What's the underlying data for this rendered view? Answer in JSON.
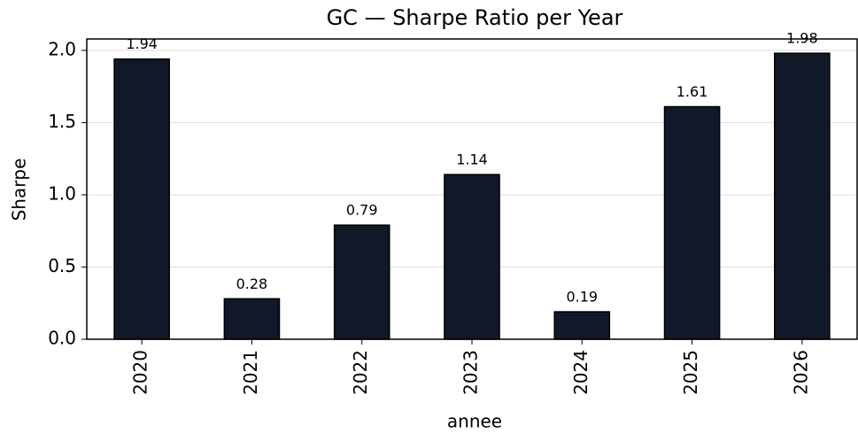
{
  "chart_data": {
    "type": "bar",
    "title": "GC — Sharpe Ratio per Year",
    "xlabel": "annee",
    "ylabel": "Sharpe",
    "categories": [
      "2020",
      "2021",
      "2022",
      "2023",
      "2024",
      "2025",
      "2026"
    ],
    "values": [
      1.94,
      0.28,
      0.79,
      1.14,
      0.19,
      1.61,
      1.98
    ],
    "color": "#111827",
    "ylim": [
      0,
      2.079
    ],
    "yticks": [
      {
        "value": 0,
        "label": "0.0"
      },
      0.5,
      {
        "value": 1,
        "label": "1.0"
      },
      1.5,
      {
        "value": 2,
        "label": "2.0"
      }
    ],
    "grid": true
  }
}
